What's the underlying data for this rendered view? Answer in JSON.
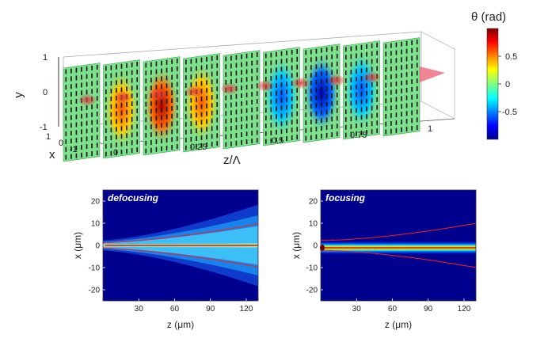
{
  "figure_3d": {
    "colorbar": {
      "title": "θ (rad)",
      "ticks": [
        "0.5",
        "0",
        "-0.5"
      ]
    },
    "axes": {
      "y_label": "y",
      "x_label": "x",
      "z_label": "z/Λ",
      "y_ticks": [
        "1",
        "0",
        "-1"
      ],
      "x_ticks": [
        "1",
        "0",
        "-1"
      ],
      "z_ticks": [
        "0",
        "0.25",
        "0.5",
        "0.75",
        "1"
      ]
    },
    "panels": [
      {
        "z": 0.0,
        "theta": 0.05
      },
      {
        "z": 0.125,
        "theta": 0.55
      },
      {
        "z": 0.25,
        "theta": 0.85
      },
      {
        "z": 0.375,
        "theta": 0.55
      },
      {
        "z": 0.5,
        "theta": 0.05
      },
      {
        "z": 0.625,
        "theta": -0.55
      },
      {
        "z": 0.75,
        "theta": -0.85
      },
      {
        "z": 0.875,
        "theta": -0.55
      },
      {
        "z": 1.0,
        "theta": 0.0
      }
    ],
    "colors": {
      "panel_base": "#7ce08c",
      "beam": "#e0383e"
    }
  },
  "plots": [
    {
      "tag": "defocusing",
      "x_axis_label": "z (μm)",
      "y_axis_label": "x (μm)",
      "x_ticks": [
        "30",
        "60",
        "90",
        "120"
      ],
      "y_ticks": [
        "20",
        "10",
        "0",
        "-10",
        "-20"
      ],
      "xlim": [
        0,
        130
      ],
      "ylim": [
        -25,
        25
      ],
      "mode": "diverging"
    },
    {
      "tag": "focusing",
      "x_axis_label": "z (μm)",
      "y_axis_label": "x (μm)",
      "x_ticks": [
        "30",
        "60",
        "90",
        "120"
      ],
      "y_ticks": [
        "20",
        "10",
        "0",
        "-10",
        "-20"
      ],
      "xlim": [
        0,
        130
      ],
      "ylim": [
        -25,
        25
      ],
      "mode": "confined"
    }
  ]
}
